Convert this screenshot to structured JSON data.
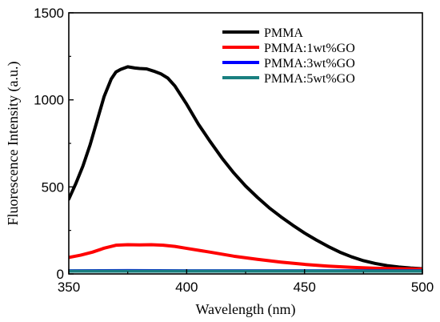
{
  "chart_data": {
    "type": "line",
    "title": "",
    "xlabel": "Wavelength (nm)",
    "ylabel": "Fluorescence Intensity (a.u.)",
    "xlim": [
      350,
      500
    ],
    "ylim": [
      0,
      1500
    ],
    "xticks": [
      350,
      400,
      450,
      500
    ],
    "yticks": [
      0,
      500,
      1000,
      1500
    ],
    "grid": false,
    "legend_position": "top-right",
    "series": [
      {
        "name": "PMMA",
        "color": "#000000",
        "x": [
          350,
          353,
          356,
          359,
          362,
          365,
          368,
          370,
          372,
          375,
          378,
          380,
          383,
          386,
          389,
          392,
          395,
          400,
          405,
          410,
          415,
          420,
          425,
          430,
          435,
          440,
          445,
          450,
          455,
          460,
          465,
          470,
          475,
          480,
          485,
          490,
          495,
          500
        ],
        "y": [
          430,
          520,
          620,
          740,
          880,
          1020,
          1120,
          1160,
          1175,
          1190,
          1183,
          1180,
          1178,
          1165,
          1150,
          1125,
          1080,
          975,
          860,
          760,
          665,
          580,
          505,
          440,
          380,
          328,
          280,
          235,
          195,
          158,
          125,
          98,
          76,
          60,
          48,
          40,
          34,
          30
        ]
      },
      {
        "name": "PMMA:1wt%GO",
        "color": "#ff0000",
        "x": [
          350,
          355,
          360,
          365,
          370,
          375,
          380,
          385,
          390,
          395,
          400,
          410,
          420,
          430,
          440,
          450,
          460,
          470,
          480,
          490,
          500
        ],
        "y": [
          95,
          108,
          125,
          148,
          165,
          168,
          167,
          168,
          165,
          158,
          147,
          125,
          102,
          84,
          68,
          55,
          45,
          38,
          33,
          30,
          28
        ]
      },
      {
        "name": "PMMA:3wt%GO",
        "color": "#0000ff",
        "x": [
          350,
          375,
          400,
          425,
          450,
          475,
          500
        ],
        "y": [
          18,
          19,
          18,
          18,
          18,
          18,
          18
        ]
      },
      {
        "name": "PMMA:5wt%GO",
        "color": "#1a8080",
        "x": [
          350,
          375,
          400,
          425,
          450,
          475,
          500
        ],
        "y": [
          16,
          16,
          16,
          16,
          16,
          16,
          16
        ]
      }
    ]
  }
}
